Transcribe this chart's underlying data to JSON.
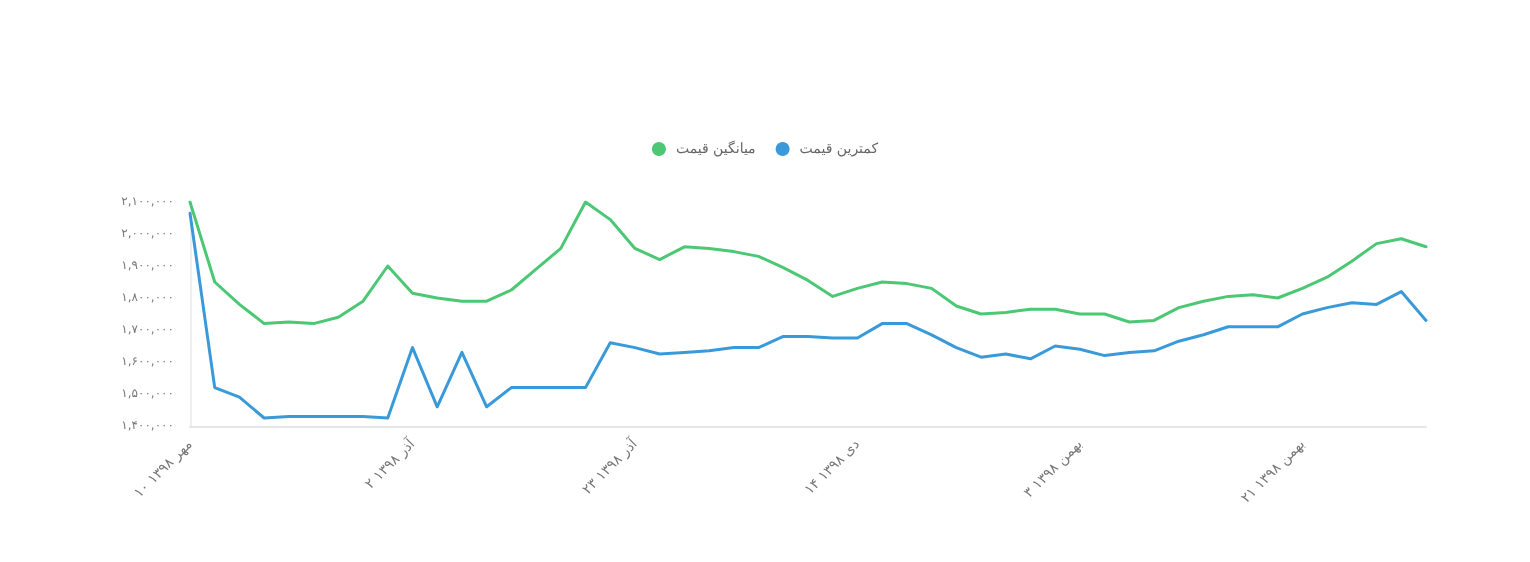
{
  "chart_data": {
    "type": "line",
    "categories": [
      "۱۰ مهر ۱۳۹۸",
      null,
      null,
      null,
      null,
      null,
      null,
      null,
      null,
      "۲ آذر ۱۳۹۸",
      null,
      null,
      null,
      null,
      null,
      null,
      null,
      null,
      "۲۳ آذر ۱۳۹۸",
      null,
      null,
      null,
      null,
      null,
      null,
      null,
      null,
      "۱۴ دی ۱۳۹۸",
      null,
      null,
      null,
      null,
      null,
      null,
      null,
      null,
      "۳ بهمن ۱۳۹۸",
      null,
      null,
      null,
      null,
      null,
      null,
      null,
      null,
      "۲۱ بهمن ۱۳۹۸",
      null,
      null,
      null,
      null,
      null
    ],
    "series": [
      {
        "name": "میانگین قیمت",
        "color": "#4cc774",
        "values": [
          2100000,
          1850000,
          1780000,
          1720000,
          1725000,
          1720000,
          1740000,
          1790000,
          1900000,
          1815000,
          1800000,
          1790000,
          1790000,
          1825000,
          1890000,
          1955000,
          2100000,
          2045000,
          1955000,
          1920000,
          1960000,
          1955000,
          1945000,
          1930000,
          1895000,
          1855000,
          1805000,
          1830000,
          1850000,
          1845000,
          1830000,
          1775000,
          1750000,
          1755000,
          1765000,
          1765000,
          1750000,
          1750000,
          1725000,
          1730000,
          1770000,
          1790000,
          1805000,
          1810000,
          1800000,
          1830000,
          1865000,
          1915000,
          1970000,
          1985000,
          1960000
        ]
      },
      {
        "name": "کمترین قیمت",
        "color": "#3a9ad9",
        "values": [
          2065000,
          1520000,
          1490000,
          1425000,
          1430000,
          1430000,
          1430000,
          1430000,
          1425000,
          1645000,
          1460000,
          1630000,
          1460000,
          1520000,
          1520000,
          1520000,
          1520000,
          1660000,
          1645000,
          1625000,
          1630000,
          1635000,
          1645000,
          1645000,
          1680000,
          1680000,
          1675000,
          1675000,
          1720000,
          1720000,
          1685000,
          1645000,
          1615000,
          1625000,
          1610000,
          1650000,
          1640000,
          1620000,
          1630000,
          1635000,
          1665000,
          1685000,
          1710000,
          1710000,
          1710000,
          1750000,
          1770000,
          1785000,
          1780000,
          1820000,
          1730000
        ]
      }
    ],
    "ylim": [
      1400000,
      2100000
    ],
    "yticks": [
      {
        "value": 1400000,
        "label": "۱,۴۰۰,۰۰۰"
      },
      {
        "value": 1500000,
        "label": "۱,۵۰۰,۰۰۰"
      },
      {
        "value": 1600000,
        "label": "۱,۶۰۰,۰۰۰"
      },
      {
        "value": 1700000,
        "label": "۱,۷۰۰,۰۰۰"
      },
      {
        "value": 1800000,
        "label": "۱,۸۰۰,۰۰۰"
      },
      {
        "value": 1900000,
        "label": "۱,۹۰۰,۰۰۰"
      },
      {
        "value": 2000000,
        "label": "۲,۰۰۰,۰۰۰"
      },
      {
        "value": 2100000,
        "label": "۲,۱۰۰,۰۰۰"
      }
    ],
    "grid": false,
    "legend": "top",
    "marker": "none",
    "line_style": "solid"
  }
}
